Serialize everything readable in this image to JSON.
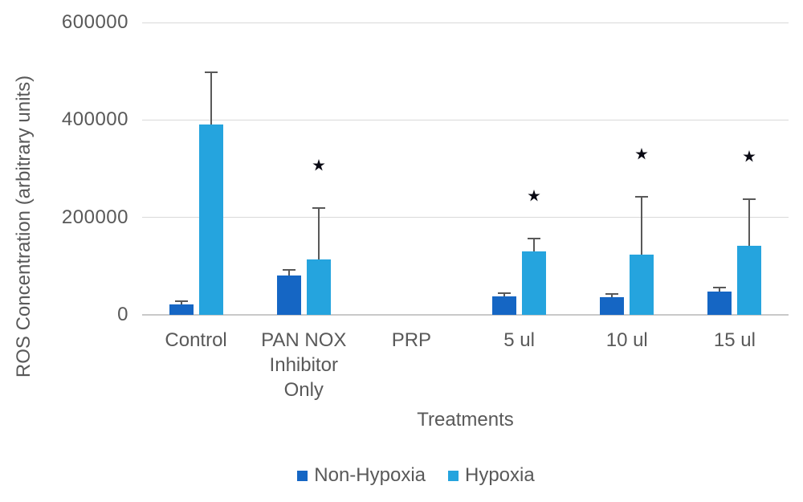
{
  "chart_data": {
    "type": "bar",
    "title": "",
    "xlabel": "Treatments",
    "ylabel": "ROS Concentration (arbitrary units)",
    "ylim": [
      0,
      600000
    ],
    "yticks": [
      0,
      200000,
      400000,
      600000
    ],
    "ytick_labels": [
      "0",
      "200000",
      "400000",
      "600000"
    ],
    "grid": true,
    "legend_position": "bottom",
    "categories": [
      "Control",
      "PAN NOX\nInhibitor\nOnly",
      "PRP",
      "5 ul",
      "10 ul",
      "15 ul"
    ],
    "series": [
      {
        "name": "Non-Hypoxia",
        "color": "#1566c4",
        "values": [
          22000,
          80000,
          0,
          38000,
          36000,
          47000
        ],
        "errors_plus": [
          6000,
          12000,
          0,
          6000,
          7000,
          9000
        ]
      },
      {
        "name": "Hypoxia",
        "color": "#25a4de",
        "values": [
          390000,
          114000,
          0,
          131000,
          124000,
          141000
        ],
        "errors_plus": [
          107000,
          105000,
          0,
          26000,
          118000,
          96000
        ]
      }
    ],
    "significance": {
      "marker": "*",
      "series": "Hypoxia",
      "categories_flags": [
        false,
        true,
        false,
        true,
        true,
        true
      ]
    }
  },
  "colors": {
    "grid": "#d9d9d9",
    "axis_line": "#c9c9c9",
    "error_bar": "#595959",
    "text": "#595959",
    "star": "#0a0a14",
    "background": "#ffffff"
  }
}
